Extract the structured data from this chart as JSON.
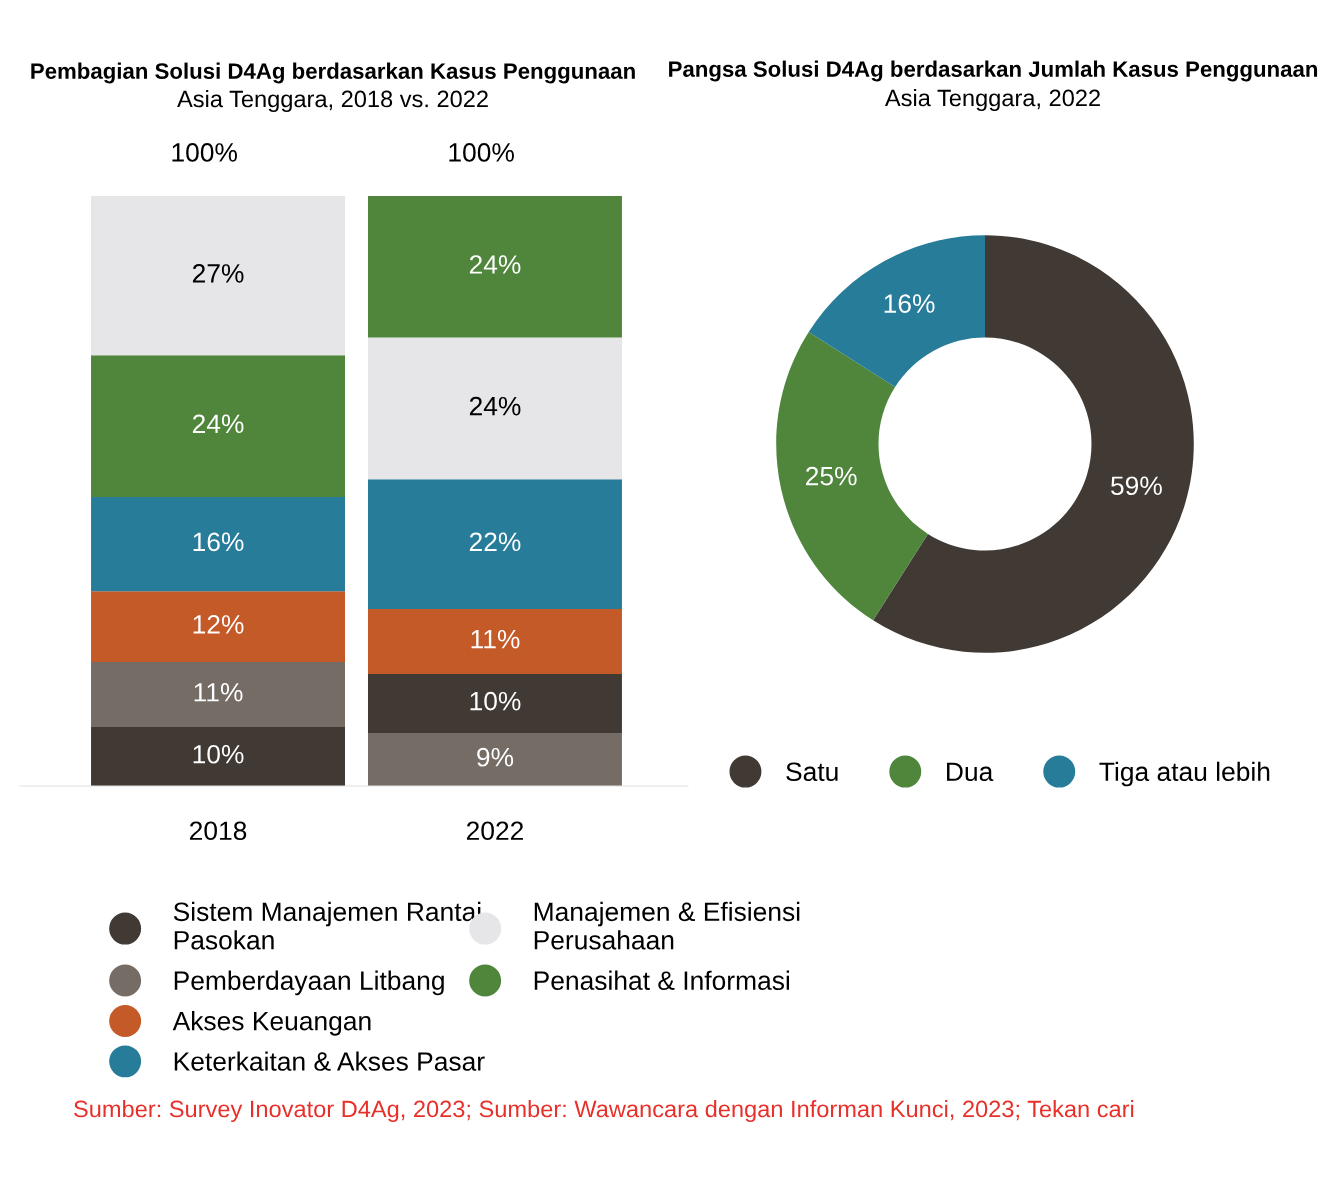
{
  "chart_data": [
    {
      "type": "bar",
      "title": "Pembagian Solusi D4Ag berdasarkan Kasus Penggunaan",
      "subtitle": "Asia Tenggara, 2018 vs. 2022",
      "categories": [
        "2018",
        "2022"
      ],
      "stacked": true,
      "series": [
        {
          "color": "#756c66",
          "values": [
            null,
            9
          ],
          "value_labels": [
            null,
            "9%"
          ]
        },
        {
          "name": "Sistem Manajemen Rantai Pasokan",
          "color": "#413a34",
          "values": [
            10,
            10
          ],
          "value_labels": [
            "10%",
            "10%"
          ]
        },
        {
          "name": "Pemberdayaan Litbang",
          "color": "#756c66",
          "values": [
            11,
            null
          ],
          "value_labels": [
            "11%",
            null
          ]
        },
        {
          "name": "Akses Keuangan",
          "color": "#c45a28",
          "values": [
            12,
            11
          ],
          "value_labels": [
            "12%",
            "11%"
          ]
        },
        {
          "name": "Keterkaitan & Akses Pasar",
          "color": "#277c9a",
          "values": [
            16,
            22
          ],
          "value_labels": [
            "16%",
            "22%"
          ]
        },
        {
          "name": "Manajemen & Efisiensi Perusahaan",
          "color": "#e6e6e8",
          "values": [
            null,
            24
          ],
          "value_labels": [
            null,
            "24%"
          ]
        },
        {
          "name": "Penasihat & Informasi",
          "color": "#4f863b",
          "values": [
            24,
            24
          ],
          "value_labels": [
            "24%",
            "24%"
          ]
        },
        {
          "color": "#e6e6e8",
          "values": [
            27,
            null
          ],
          "value_labels": [
            "27%",
            null
          ]
        }
      ],
      "totals": [
        "100%",
        "100%"
      ],
      "legend": "bottom",
      "annotations": [
        "Sumber: Survey Inovator D4Ag, 2023; Sumber: Wawancara dengan Informan Kunci, 2023; Tekan cari"
      ]
    },
    {
      "type": "donut",
      "title": "Pangsa Solusi D4Ag berdasarkan Jumlah Kasus Penggunaan",
      "subtitle": "Asia Tenggara, 2022",
      "categories": [
        "Satu",
        "Dua",
        "Tiga atau lebih"
      ],
      "values": [
        59,
        25,
        16
      ],
      "value_labels": [
        "59%",
        "25%",
        "16%"
      ],
      "colors": [
        "#413a34",
        "#4f863b",
        "#277c9a"
      ],
      "legend": "bottom"
    }
  ]
}
